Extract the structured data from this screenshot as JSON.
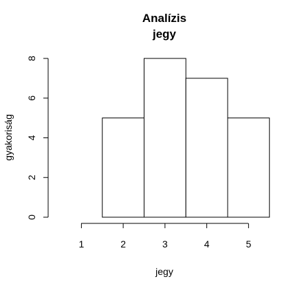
{
  "chart_data": {
    "type": "bar",
    "title": "Analízis",
    "subtitle": "jegy",
    "xlabel": "jegy",
    "ylabel": "gyakoriság",
    "categories": [
      "1",
      "2",
      "3",
      "4",
      "5"
    ],
    "values": [
      0,
      5,
      8,
      7,
      5
    ],
    "x_tick_labels": [
      "1",
      "2",
      "3",
      "4",
      "5"
    ],
    "y_tick_labels": [
      "0",
      "2",
      "4",
      "6",
      "8"
    ],
    "y_ticks": [
      0,
      2,
      4,
      6,
      8
    ],
    "ylim": [
      0,
      8
    ],
    "grid": false,
    "legend": "none",
    "bar_fill_color": "#ffffff",
    "bar_stroke_color": "#000000"
  }
}
